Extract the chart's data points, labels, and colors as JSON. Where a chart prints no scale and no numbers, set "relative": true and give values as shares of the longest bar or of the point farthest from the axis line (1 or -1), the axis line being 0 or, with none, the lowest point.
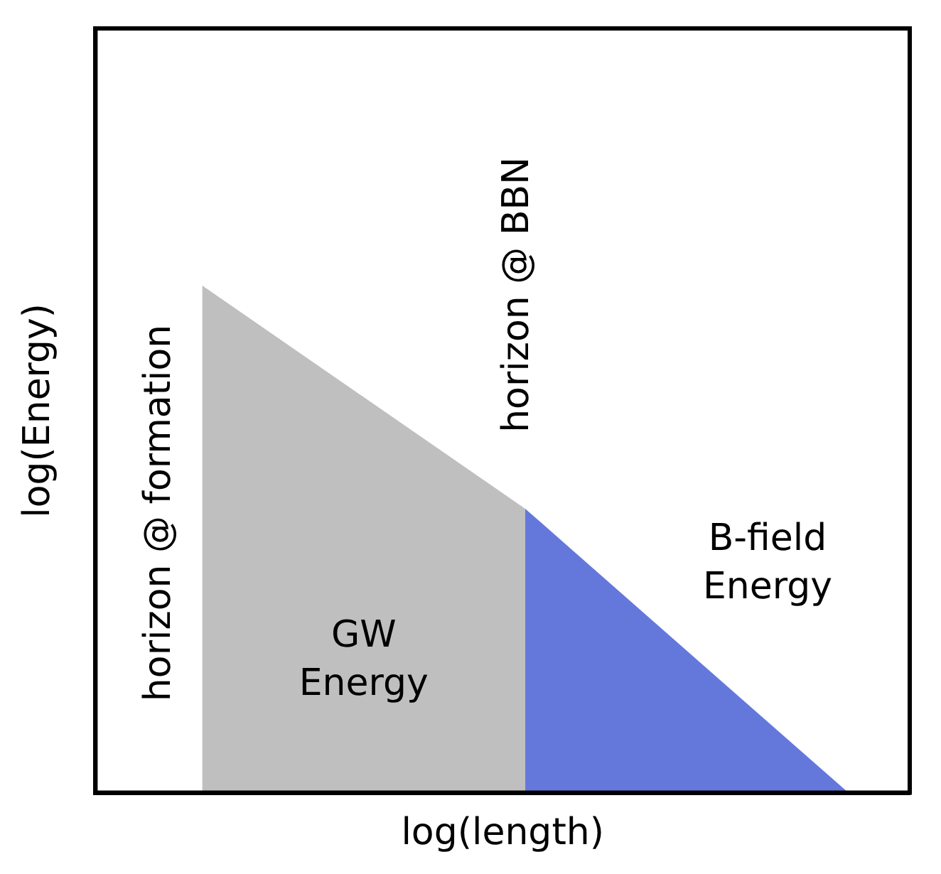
{
  "chart_data": {
    "type": "area",
    "relative": true,
    "xlabel": "log(length)",
    "ylabel": "log(Energy)",
    "categories": [
      null,
      null,
      null
    ],
    "series": [
      {
        "name": "GW Energy",
        "color": "#bfbfbf",
        "values": [
          1,
          0.56,
          null
        ]
      },
      {
        "name": "B-field Energy",
        "color": "#6478dc",
        "values": [
          null,
          0.56,
          0
        ]
      }
    ],
    "annotations": [
      "horizon @ formation",
      "horizon @ BBN"
    ],
    "legend": false,
    "grid": false
  }
}
